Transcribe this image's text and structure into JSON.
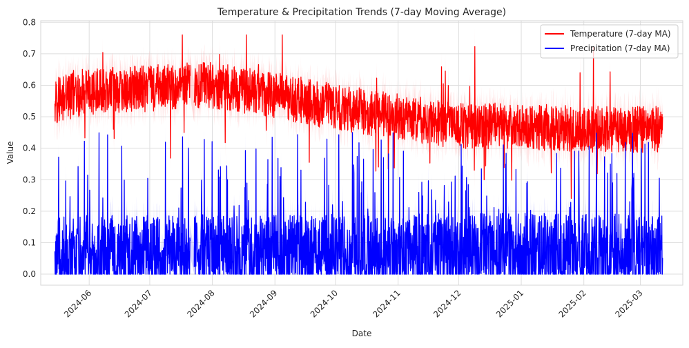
{
  "chart_data": {
    "type": "line",
    "title": "Temperature & Precipitation Trends (7-day Moving Average)",
    "xlabel": "Date",
    "ylabel": "Value",
    "x_range": [
      "2024-05-08",
      "2025-03-22"
    ],
    "data_range": [
      "2024-05-15",
      "2025-03-12"
    ],
    "gap": [
      "2024-07-21",
      "2024-07-23"
    ],
    "ylim": [
      -0.035,
      0.805
    ],
    "x_ticks": [
      "2024-06-01",
      "2024-07-01",
      "2024-08-01",
      "2024-09-01",
      "2024-10-01",
      "2024-11-01",
      "2024-12-01",
      "2025-01-01",
      "2025-02-01",
      "2025-03-01"
    ],
    "x_tick_labels": [
      "2024-06",
      "2024-07",
      "2024-08",
      "2024-09",
      "2024-10",
      "2024-11",
      "2024-12",
      "2025-01",
      "2025-02",
      "2025-03"
    ],
    "y_ticks": [
      0.0,
      0.1,
      0.2,
      0.3,
      0.4,
      0.5,
      0.6,
      0.7,
      0.8
    ],
    "y_tick_labels": [
      "0.0",
      "0.1",
      "0.2",
      "0.3",
      "0.4",
      "0.5",
      "0.6",
      "0.7",
      "0.8"
    ],
    "grid": true,
    "legend_position": "top-right",
    "series": [
      {
        "name": "Temperature (7-day MA)",
        "color": "#ff0000",
        "band_color": "#ffaaaa",
        "trend_dates": [
          "2024-05-15",
          "2024-06-01",
          "2024-07-01",
          "2024-07-20",
          "2024-08-01",
          "2024-09-01",
          "2024-10-01",
          "2024-11-01",
          "2024-12-01",
          "2025-01-01",
          "2025-02-01",
          "2025-03-01",
          "2025-03-12"
        ],
        "trend_values": [
          0.55,
          0.58,
          0.59,
          0.6,
          0.6,
          0.57,
          0.53,
          0.5,
          0.47,
          0.47,
          0.46,
          0.46,
          0.46
        ],
        "typical_spread": 0.07,
        "observed_max": 0.76,
        "observed_min": 0.18
      },
      {
        "name": "Precipitation (7-day MA)",
        "color": "#0000ff",
        "band_color": "#aaaaff",
        "trend_dates": [
          "2024-05-15",
          "2024-09-01",
          "2025-01-01",
          "2025-03-12"
        ],
        "trend_values": [
          0.08,
          0.08,
          0.085,
          0.08
        ],
        "typical_spread": 0.09,
        "observed_max": 0.45,
        "observed_min": 0.0
      }
    ]
  }
}
